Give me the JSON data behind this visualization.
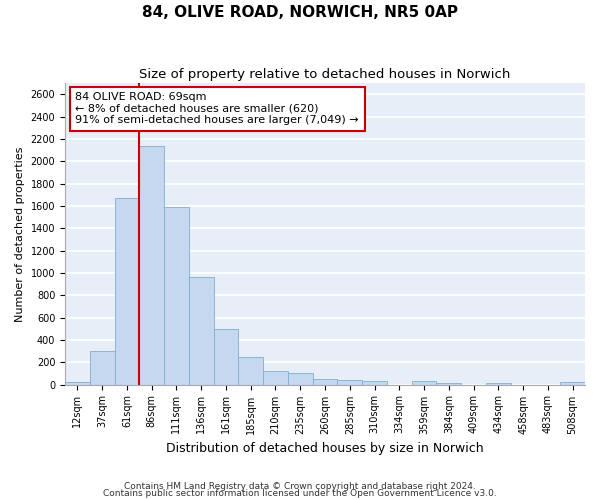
{
  "title": "84, OLIVE ROAD, NORWICH, NR5 0AP",
  "subtitle": "Size of property relative to detached houses in Norwich",
  "xlabel": "Distribution of detached houses by size in Norwich",
  "ylabel": "Number of detached properties",
  "footnote1": "Contains HM Land Registry data © Crown copyright and database right 2024.",
  "footnote2": "Contains public sector information licensed under the Open Government Licence v3.0.",
  "bar_labels": [
    "12sqm",
    "37sqm",
    "61sqm",
    "86sqm",
    "111sqm",
    "136sqm",
    "161sqm",
    "185sqm",
    "210sqm",
    "235sqm",
    "260sqm",
    "285sqm",
    "310sqm",
    "334sqm",
    "359sqm",
    "384sqm",
    "409sqm",
    "434sqm",
    "458sqm",
    "483sqm",
    "508sqm"
  ],
  "bar_values": [
    25,
    300,
    1670,
    2140,
    1590,
    960,
    500,
    250,
    120,
    100,
    50,
    40,
    30,
    0,
    30,
    15,
    0,
    15,
    0,
    0,
    20
  ],
  "bar_color": "#c5d8f0",
  "bar_edge_color": "#7bafd4",
  "annotation_text": "84 OLIVE ROAD: 69sqm\n← 8% of detached houses are smaller (620)\n91% of semi-detached houses are larger (7,049) →",
  "vline_color": "#cc0000",
  "vline_x_index": 2.5,
  "annotation_box_color": "#ffffff",
  "annotation_box_edge_color": "#cc0000",
  "ylim": [
    0,
    2700
  ],
  "yticks": [
    0,
    200,
    400,
    600,
    800,
    1000,
    1200,
    1400,
    1600,
    1800,
    2000,
    2200,
    2400,
    2600
  ],
  "plot_bg_color": "#e8eef8",
  "grid_color": "#ffffff",
  "fig_bg_color": "#ffffff",
  "title_fontsize": 11,
  "subtitle_fontsize": 9.5,
  "xlabel_fontsize": 9,
  "ylabel_fontsize": 8,
  "tick_fontsize": 7,
  "annotation_fontsize": 8,
  "footnote_fontsize": 6.5
}
